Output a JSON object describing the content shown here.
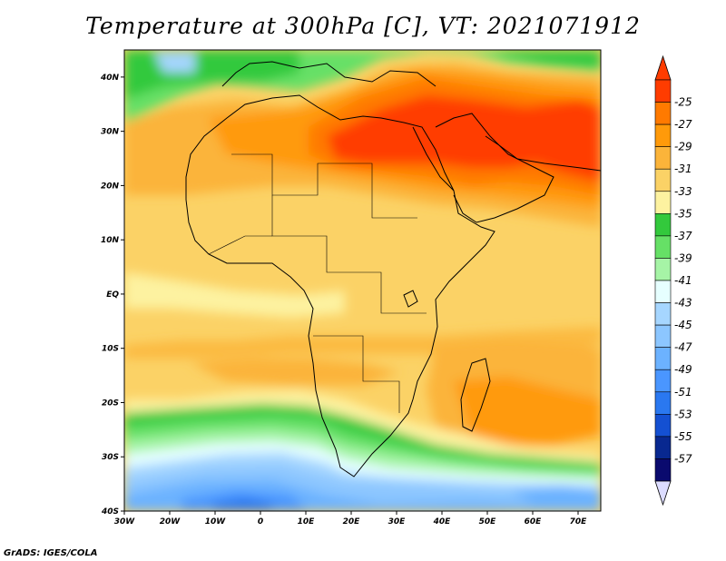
{
  "title": "Temperature at 300hPa [C], VT: 2021071912",
  "footer": "GrADS: IGES/COLA",
  "map": {
    "lat_labels": [
      "40N",
      "30N",
      "20N",
      "10N",
      "EQ",
      "10S",
      "20S",
      "30S",
      "40S"
    ],
    "lon_labels": [
      "30W",
      "20W",
      "10W",
      "0",
      "10E",
      "20E",
      "30E",
      "40E",
      "50E",
      "60E",
      "70E"
    ],
    "lat_range": [
      -40,
      45
    ],
    "lon_range": [
      -30,
      75
    ]
  },
  "colorbar": {
    "labels": [
      "-25",
      "-27",
      "-29",
      "-31",
      "-33",
      "-35",
      "-37",
      "-39",
      "-41",
      "-43",
      "-45",
      "-47",
      "-49",
      "-51",
      "-53",
      "-55",
      "-57"
    ],
    "colors": [
      "#ff3c00",
      "#ff7a00",
      "#ff9a0a",
      "#fbb43a",
      "#fbd266",
      "#fdf2a0",
      "#33c93c",
      "#66e066",
      "#a6f4a6",
      "#e6ffff",
      "#a6d6ff",
      "#8cc6ff",
      "#6cb2ff",
      "#4a96ff",
      "#2a78f0",
      "#1450d2",
      "#082890",
      "#0a0a6e"
    ],
    "top_triangle_color": "#ff3c00",
    "bottom_triangle_color": "#dcdcff"
  }
}
